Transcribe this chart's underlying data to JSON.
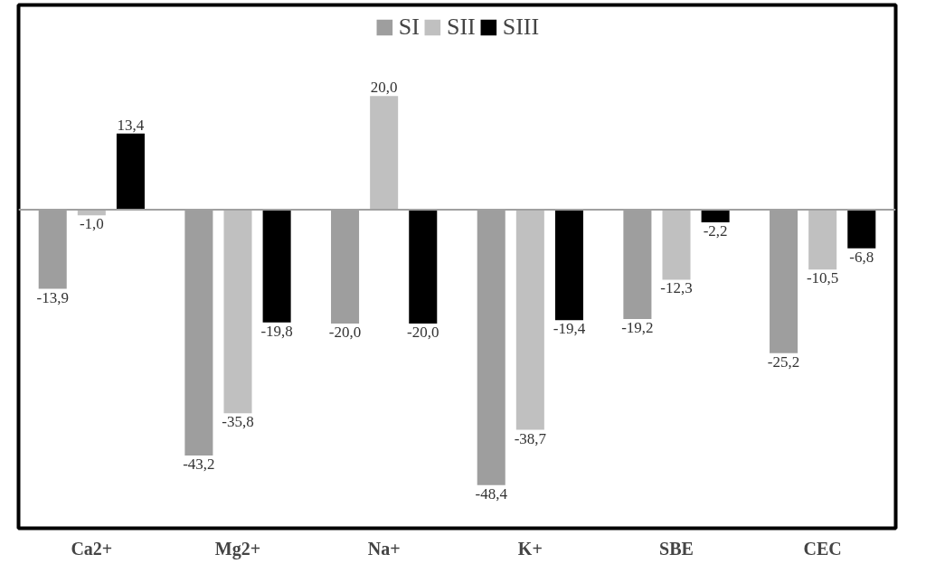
{
  "chart_data": {
    "type": "bar",
    "categories": [
      "Ca2+",
      "Mg2+",
      "Na+",
      "K+",
      "SBE",
      "CEC"
    ],
    "series": [
      {
        "name": "SI",
        "color": "#9e9e9e",
        "values": [
          -13.9,
          -43.2,
          -20.0,
          -48.4,
          -19.2,
          -25.2
        ],
        "value_labels": [
          "-13,9",
          "-43,2",
          "-20,0",
          "-48,4",
          "-19,2",
          "-25,2"
        ]
      },
      {
        "name": "SII",
        "color": "#c0c0c0",
        "values": [
          -1.0,
          -35.8,
          20.0,
          -38.7,
          -12.3,
          -10.5
        ],
        "value_labels": [
          "-1,0",
          "-35,8",
          "20,0",
          "-38,7",
          "-12,3",
          "-10,5"
        ]
      },
      {
        "name": "SIII",
        "color": "#000000",
        "values": [
          13.4,
          -19.8,
          -20.0,
          -19.4,
          -2.2,
          -6.8
        ],
        "value_labels": [
          "13,4",
          "-19,8",
          "-20,0",
          "-19,4",
          "-2,2",
          "-6,8"
        ]
      }
    ],
    "ylim": [
      -56,
      36
    ],
    "tick_labels": "x",
    "legend": "top",
    "grid": false
  }
}
